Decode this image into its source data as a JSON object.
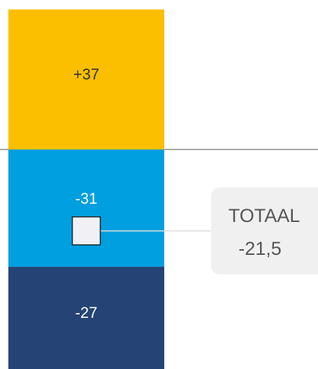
{
  "chart_data": {
    "type": "bar",
    "stacked": true,
    "series": [
      {
        "color": "#fbbf00",
        "label_color": "#333333",
        "values": [
          37
        ],
        "value_labels": [
          "+37"
        ]
      },
      {
        "color": "#009fe0",
        "label_color": "#ffffff",
        "values": [
          -31
        ],
        "value_labels": [
          "-31"
        ]
      },
      {
        "color": "#254475",
        "label_color": "#ffffff",
        "values": [
          -27
        ],
        "value_labels": [
          "-27"
        ]
      }
    ],
    "total": {
      "label": "TOTAAL",
      "value": -21.5,
      "value_label": "-21,5"
    },
    "ylim": [
      -58,
      39.5
    ]
  }
}
